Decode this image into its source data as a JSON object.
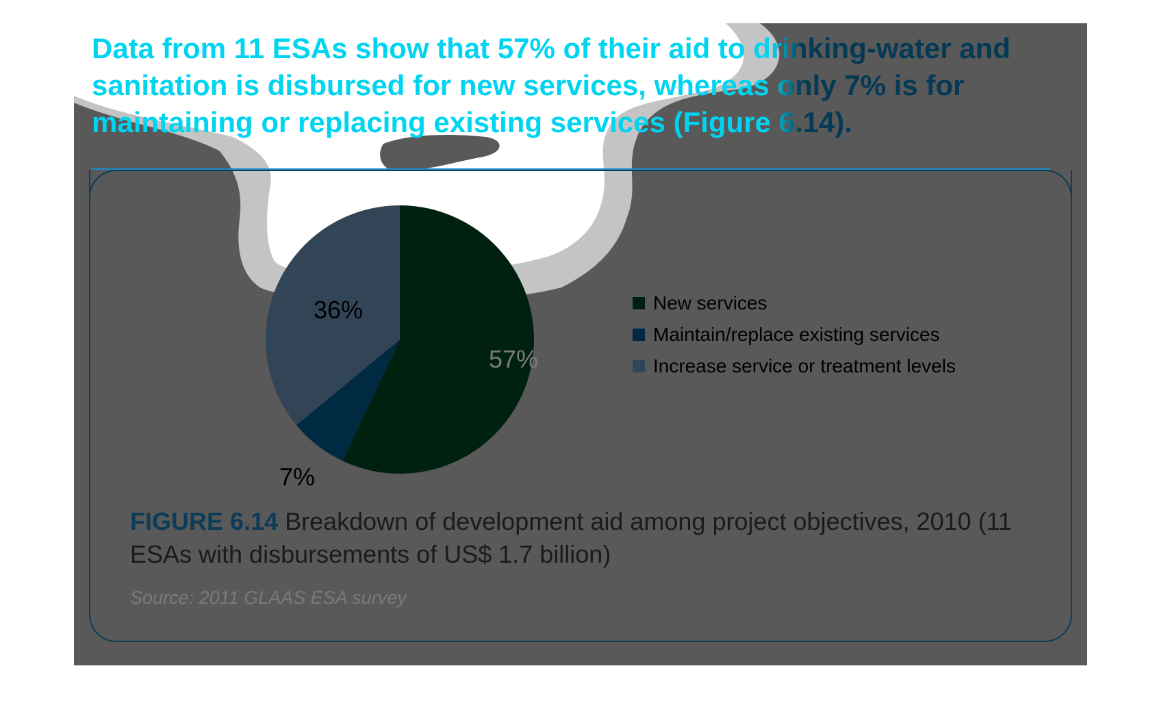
{
  "headline": "Data from 11 ESAs show that 57% of their aid to drinking-water and sanitation is disbursed for new services, whereas only 7% is for maintaining or replacing existing services (Figure 6.14).",
  "figure": {
    "label": "FIGURE 6.14",
    "caption": " Breakdown of development aid among project objectives, 2010 (11 ESAs with disbursements of US$ 1.7 billion)",
    "source": "Source: 2011 GLAAS ESA survey"
  },
  "colors": {
    "background": "#595959",
    "headline": "#00d4f0",
    "accent": "#0d3c58",
    "new_services": "#002010",
    "maintain_replace": "#002a42",
    "increase_levels": "#324556"
  },
  "chart_data": {
    "type": "pie",
    "title": "",
    "slices": [
      {
        "name": "New services",
        "value": 57,
        "label": "57%",
        "color": "#002010"
      },
      {
        "name": "Maintain/replace existing services",
        "value": 7,
        "label": "7%",
        "color": "#002a42"
      },
      {
        "name": "Increase service or treatment levels",
        "value": 36,
        "label": "36%",
        "color": "#324556"
      }
    ],
    "legend_position": "right"
  }
}
